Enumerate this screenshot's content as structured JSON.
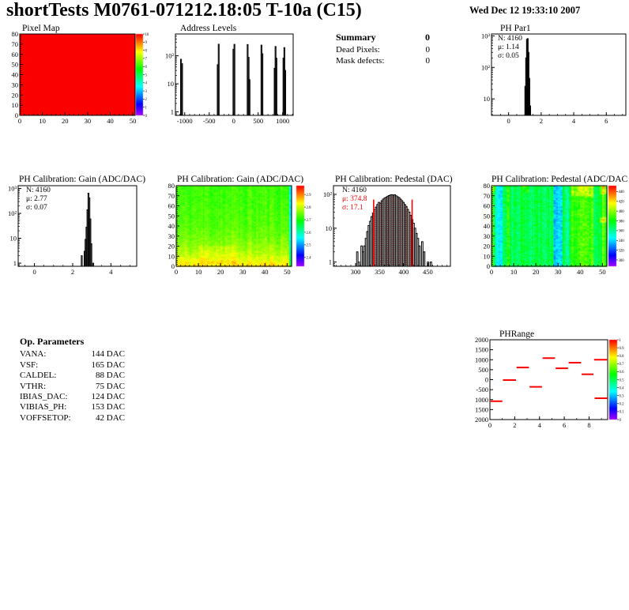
{
  "page": {
    "title": "shortTests M0761-071212.18:05 T-10a (C15)",
    "datetime": "Wed Dec 12 19:33:10 2007"
  },
  "summary": {
    "header": "Summary",
    "header_value": "0",
    "rows": [
      {
        "label": "Dead Pixels:",
        "value": "0"
      },
      {
        "label": "Mask defects:",
        "value": "0"
      }
    ]
  },
  "op_parameters": {
    "header": "Op. Parameters",
    "rows": [
      {
        "label": "VANA:",
        "value": "144 DAC"
      },
      {
        "label": "VSF:",
        "value": "165 DAC"
      },
      {
        "label": "CALDEL:",
        "value": "88 DAC"
      },
      {
        "label": "VTHR:",
        "value": "75 DAC"
      },
      {
        "label": "IBIAS_DAC:",
        "value": "124 DAC"
      },
      {
        "label": "VIBIAS_PH:",
        "value": "153 DAC"
      },
      {
        "label": "VOFFSETOP:",
        "value": "42 DAC"
      }
    ]
  },
  "chart_data": [
    {
      "id": "pixel_map",
      "type": "heatmap",
      "title": "Pixel Map",
      "xlim": [
        0,
        51
      ],
      "ylim": [
        0,
        80
      ],
      "x_ticks": [
        0,
        10,
        20,
        30,
        40,
        50
      ],
      "x_minor": 2,
      "y_ticks": [
        0,
        10,
        20,
        30,
        40,
        50,
        60,
        70,
        80
      ],
      "y_minor": 2,
      "uniform_value": 10,
      "fill_color": "#fb0000",
      "colorbar": {
        "zmin": 0,
        "zmax": 10,
        "labels": [
          [
            "10",
            10
          ],
          [
            "9",
            9
          ],
          [
            "8",
            8
          ],
          [
            "7",
            7
          ],
          [
            "6",
            6
          ],
          [
            "5",
            5
          ],
          [
            "4",
            4
          ],
          [
            "3",
            3
          ],
          [
            "2",
            2
          ],
          [
            "1",
            1
          ],
          [
            "0",
            0
          ]
        ]
      }
    },
    {
      "id": "address_levels",
      "type": "bar",
      "title": "Address Levels",
      "ylog": true,
      "xlim": [
        -1190,
        1215
      ],
      "ylim": [
        0.75,
        600
      ],
      "x_ticks": [
        -1000,
        -500,
        0,
        500,
        1000
      ],
      "x_minor": 100,
      "y_decades": [
        1,
        10,
        100
      ],
      "binwidth": 18,
      "bars": [
        [
          -1085,
          75
        ],
        [
          -1063,
          52
        ],
        [
          -335,
          48
        ],
        [
          -315,
          258
        ],
        [
          -14,
          170
        ],
        [
          6,
          255
        ],
        [
          276,
          252
        ],
        [
          296,
          88
        ],
        [
          314,
          14
        ],
        [
          558,
          240
        ],
        [
          578,
          118
        ],
        [
          828,
          36
        ],
        [
          846,
          215
        ],
        [
          864,
          82
        ],
        [
          1008,
          82
        ],
        [
          1026,
          196
        ],
        [
          1044,
          30
        ]
      ]
    },
    {
      "id": "ph_par1",
      "type": "bar",
      "title": "PH Par1",
      "ylog": true,
      "xlim": [
        -1.05,
        7.2
      ],
      "ylim": [
        3,
        1150
      ],
      "x_ticks": [
        0,
        2,
        4,
        6
      ],
      "x_minor": 0.5,
      "y_decades": [
        10,
        100,
        1000
      ],
      "binwidth": 0.05,
      "stats": {
        "n": "N: 4160",
        "mu": "μ: 1.14",
        "sigma": "σ: 0.05"
      },
      "bars": [
        [
          0.95,
          3
        ],
        [
          1.0,
          25
        ],
        [
          1.05,
          200
        ],
        [
          1.1,
          780
        ],
        [
          1.15,
          820
        ],
        [
          1.2,
          300
        ],
        [
          1.25,
          45
        ],
        [
          1.3,
          6
        ]
      ]
    },
    {
      "id": "gain_hist",
      "type": "bar",
      "title": "PH Calibration: Gain (ADC/DAC)",
      "ylog": true,
      "xlim": [
        -0.85,
        5.35
      ],
      "ylim": [
        0.75,
        1300
      ],
      "x_ticks": [
        0,
        2,
        4
      ],
      "x_minor": 0.5,
      "y_decades": [
        1,
        10,
        100,
        1000
      ],
      "binwidth": 0.05,
      "stats": {
        "n": "N: 4160",
        "mu": "μ: 2.77",
        "sigma": "σ: 0.07"
      },
      "bars": [
        [
          2.45,
          2
        ],
        [
          2.6,
          3
        ],
        [
          2.65,
          9
        ],
        [
          2.7,
          28
        ],
        [
          2.75,
          140
        ],
        [
          2.8,
          650
        ],
        [
          2.85,
          420
        ],
        [
          2.9,
          60
        ],
        [
          2.95,
          6
        ],
        [
          3.05,
          1
        ]
      ]
    },
    {
      "id": "gain_map",
      "type": "heatmap",
      "title": "PH Calibration: Gain (ADC/DAC)",
      "xlim": [
        0,
        52
      ],
      "ylim": [
        0,
        80
      ],
      "cols": 52,
      "rows": 80,
      "x_ticks": [
        0,
        10,
        20,
        30,
        40,
        50
      ],
      "x_minor": 2,
      "y_ticks": [
        0,
        10,
        20,
        30,
        40,
        50,
        60,
        70,
        80
      ],
      "y_minor": 2,
      "colorbar": {
        "zmin": 2.33,
        "zmax": 2.97,
        "labels": [
          [
            "2.9",
            2.9
          ],
          [
            "2.8",
            2.8
          ],
          [
            "2.7",
            2.7
          ],
          [
            "2.6",
            2.6
          ],
          [
            "2.5",
            2.5
          ],
          [
            "2.4",
            2.4
          ]
        ]
      },
      "render": {
        "seed": 11,
        "base": 2.725,
        "bottom_boost": 0.13,
        "falloff": 20,
        "col_noise": 0.015,
        "cell_noise": 0.02,
        "col_bands": [
          {
            "c0": 51,
            "c1": 51,
            "dv": -0.18
          }
        ],
        "regions": [
          {
            "c0": 10,
            "c1": 26,
            "r0": 3,
            "r1": 20,
            "dv": 0.02
          }
        ]
      }
    },
    {
      "id": "pedestal_hist",
      "type": "bar",
      "title": "PH Calibration: Pedestal (DAC)",
      "ylog": true,
      "xlim": [
        254,
        497
      ],
      "ylim": [
        0.75,
        180
      ],
      "x_ticks": [
        300,
        350,
        400,
        450
      ],
      "x_minor": 10,
      "y_decades": [
        1,
        10,
        100
      ],
      "binwidth": 3,
      "stats": {
        "n": "N: 4160",
        "mu": "μ: 374.8",
        "sigma": "σ: 17.1"
      },
      "fill_range": [
        337.5,
        417.5
      ],
      "red_line_top": 70,
      "red_color": "#f00",
      "bars": [
        [
          302,
          2
        ],
        [
          305,
          1
        ],
        [
          311,
          3
        ],
        [
          314,
          2
        ],
        [
          317,
          3
        ],
        [
          320,
          5
        ],
        [
          323,
          8
        ],
        [
          326,
          12
        ],
        [
          329,
          16
        ],
        [
          332,
          22
        ],
        [
          335,
          28
        ],
        [
          338,
          35
        ],
        [
          341,
          42
        ],
        [
          344,
          50
        ],
        [
          347,
          58
        ],
        [
          350,
          55
        ],
        [
          353,
          65
        ],
        [
          356,
          72
        ],
        [
          359,
          78
        ],
        [
          362,
          82
        ],
        [
          365,
          88
        ],
        [
          368,
          92
        ],
        [
          371,
          96
        ],
        [
          374,
          98
        ],
        [
          377,
          95
        ],
        [
          380,
          97
        ],
        [
          383,
          90
        ],
        [
          386,
          85
        ],
        [
          389,
          80
        ],
        [
          392,
          72
        ],
        [
          395,
          65
        ],
        [
          398,
          58
        ],
        [
          401,
          50
        ],
        [
          404,
          44
        ],
        [
          407,
          36
        ],
        [
          410,
          30
        ],
        [
          413,
          24
        ],
        [
          416,
          18
        ],
        [
          419,
          14
        ],
        [
          422,
          10
        ],
        [
          425,
          7
        ],
        [
          428,
          5
        ],
        [
          431,
          3
        ],
        [
          437,
          4
        ],
        [
          441,
          2
        ],
        [
          449,
          1
        ],
        [
          455,
          1
        ]
      ]
    },
    {
      "id": "pedestal_map",
      "type": "heatmap",
      "title": "PH Calibration: Pedestal (ADC/DAC",
      "xlim": [
        0,
        52
      ],
      "ylim": [
        0,
        80
      ],
      "cols": 52,
      "rows": 80,
      "x_ticks": [
        0,
        10,
        20,
        30,
        40,
        50
      ],
      "x_minor": 2,
      "y_ticks": [
        0,
        10,
        20,
        30,
        40,
        50,
        60,
        70,
        80
      ],
      "y_minor": 2,
      "colorbar": {
        "zmin": 287,
        "zmax": 452,
        "labels": [
          [
            "440",
            440
          ],
          [
            "420",
            420
          ],
          [
            "400",
            400
          ],
          [
            "380",
            380
          ],
          [
            "360",
            360
          ],
          [
            "340",
            340
          ],
          [
            "320",
            320
          ],
          [
            "300",
            300
          ]
        ]
      },
      "render": {
        "seed": 23,
        "base": 371,
        "bottom_boost": 0,
        "falloff": 1000,
        "col_noise": 6,
        "cell_noise": 8,
        "col_bands": [
          {
            "c0": 0,
            "c1": 0,
            "dv": 26
          },
          {
            "c0": 2,
            "c1": 4,
            "dv": -24
          },
          {
            "c0": 7,
            "c1": 7,
            "dv": 12
          },
          {
            "c0": 28,
            "c1": 31,
            "dv": -33
          },
          {
            "c0": 33,
            "c1": 34,
            "dv": -13
          },
          {
            "c0": 36,
            "c1": 45,
            "dv": 17
          },
          {
            "c0": 49,
            "c1": 49,
            "dv": 8
          },
          {
            "c0": 50,
            "c1": 50,
            "dv": 24
          },
          {
            "c0": 51,
            "c1": 51,
            "dv": 6
          }
        ],
        "regions": [
          {
            "c0": 36,
            "c1": 45,
            "r0": 70,
            "r1": 79,
            "dv": 18
          },
          {
            "c0": 49,
            "c1": 51,
            "r0": 72,
            "r1": 79,
            "dv": 25
          },
          {
            "c0": 0,
            "c1": 1,
            "r0": 74,
            "r1": 79,
            "dv": 20
          },
          {
            "c0": 49,
            "c1": 51,
            "r0": 44,
            "r1": 48,
            "dv": 25
          },
          {
            "c0": 14,
            "c1": 16,
            "r0": 74,
            "r1": 79,
            "dv": 14
          }
        ]
      }
    },
    {
      "id": "ph_range",
      "type": "line",
      "title": "PHRange",
      "xlim": [
        0,
        9.5
      ],
      "ylim": [
        -2000,
        2000
      ],
      "x_ticks": [
        0,
        2,
        4,
        6,
        8
      ],
      "x_minor": 1,
      "y_ticks": [
        [
          "2000",
          2000
        ],
        [
          "1500",
          1500
        ],
        [
          "1000",
          1000
        ],
        [
          "500",
          500
        ],
        [
          "0",
          0
        ],
        [
          "-500",
          -500
        ],
        [
          "1000",
          -1000
        ],
        [
          "1500",
          -1500
        ],
        [
          "2000",
          -2000
        ]
      ],
      "segment_color": "#f00",
      "segments": [
        [
          0.05,
          1.0,
          -1080
        ],
        [
          1.05,
          2.1,
          -20
        ],
        [
          2.15,
          3.15,
          610
        ],
        [
          3.2,
          4.2,
          -360
        ],
        [
          4.25,
          5.25,
          1080
        ],
        [
          5.3,
          6.3,
          570
        ],
        [
          6.35,
          7.35,
          850
        ],
        [
          7.4,
          8.35,
          270
        ],
        [
          8.4,
          9.45,
          1000
        ],
        [
          8.45,
          9.5,
          -930
        ]
      ],
      "colorbar": {
        "zmin": 0,
        "zmax": 1,
        "labels": [
          [
            "1",
            1
          ],
          [
            "0.9",
            0.9
          ],
          [
            "0.8",
            0.8
          ],
          [
            "0.7",
            0.7
          ],
          [
            "0.6",
            0.6
          ],
          [
            "0.5",
            0.5
          ],
          [
            "0.4",
            0.4
          ],
          [
            "0.3",
            0.3
          ],
          [
            "0.2",
            0.2
          ],
          [
            "0.1",
            0.1
          ],
          [
            "0",
            0
          ]
        ]
      }
    }
  ]
}
